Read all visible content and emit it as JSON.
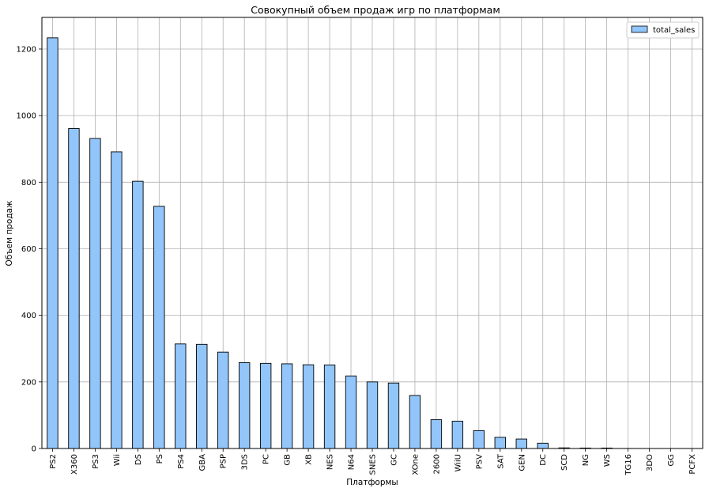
{
  "chart_data": {
    "type": "bar",
    "title": "Совокупный объем продаж игр по платформам",
    "xlabel": "Платформы",
    "ylabel": "Объем продаж",
    "categories": [
      "PS2",
      "X360",
      "PS3",
      "Wii",
      "DS",
      "PS",
      "PS4",
      "GBA",
      "PSP",
      "3DS",
      "PC",
      "GB",
      "XB",
      "NES",
      "N64",
      "SNES",
      "GC",
      "XOne",
      "2600",
      "WiiU",
      "PSV",
      "SAT",
      "GEN",
      "DC",
      "SCD",
      "NG",
      "WS",
      "TG16",
      "3DO",
      "GG",
      "PCFX"
    ],
    "series": [
      {
        "name": "total_sales",
        "values": [
          1233.6,
          961.2,
          931.3,
          891.2,
          802.8,
          727.6,
          314.1,
          312.9,
          289.5,
          257.8,
          255.8,
          254.4,
          251.6,
          251.1,
          218.0,
          200.0,
          196.7,
          159.3,
          86.5,
          82.2,
          53.8,
          33.6,
          28.4,
          15.9,
          1.9,
          1.4,
          1.4,
          0.2,
          0.1,
          0.04,
          0.03
        ],
        "color": "#92c5f9"
      }
    ],
    "ylim": [
      0,
      1295
    ],
    "yticks": [
      0,
      200,
      400,
      600,
      800,
      1000,
      1200
    ],
    "grid": true,
    "legend_position": "top-right"
  }
}
